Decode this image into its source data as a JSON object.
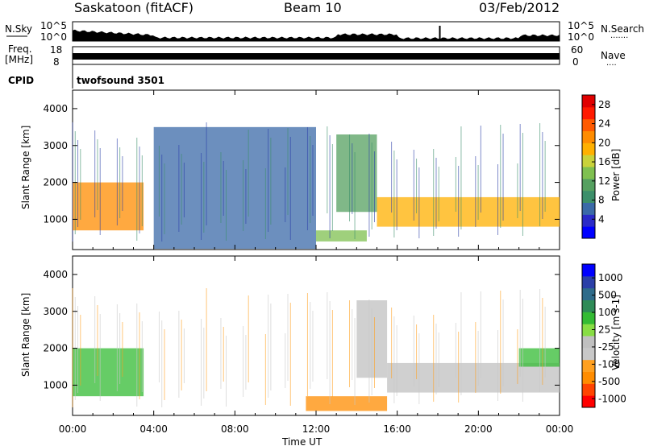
{
  "header": {
    "station": "Saskatoon (fitACF)",
    "beam": "Beam 10",
    "date": "03/Feb/2012"
  },
  "noise_panel": {
    "left_label": "N.Sky",
    "right_label": "N.Search",
    "right_dots": "·······",
    "tick_top": "10^5",
    "tick_bottom": "10^0"
  },
  "freq_panel": {
    "left_label_1": "Freq.",
    "left_label_2": "[MHz]",
    "left_tick_top": "18",
    "left_tick_bottom": "8",
    "right_label": "Nave",
    "right_dots": "····",
    "right_tick_top": "60",
    "right_tick_bottom": "0"
  },
  "cpid_panel": {
    "label": "CPID",
    "program": "twofsound 3501"
  },
  "x_axis": {
    "label": "Time UT",
    "ticks": [
      "00:00",
      "04:00",
      "08:00",
      "12:00",
      "16:00",
      "20:00",
      "00:00"
    ]
  },
  "colors": {
    "power_scale": [
      "#0000ff",
      "#2b2bc8",
      "#3b6aa8",
      "#3c8f6a",
      "#55a060",
      "#7fc050",
      "#c9d23a",
      "#ffb000",
      "#ff8c00",
      "#ff5a00",
      "#ff1a00",
      "#e00000"
    ],
    "velocity_scale": [
      "#ff0000",
      "#ff4400",
      "#ff8c00",
      "#ffa020",
      "#c8c8c8",
      "#c0c0c0",
      "#88dd44",
      "#33bb33",
      "#2e8b57",
      "#2e6b8a",
      "#2b3fa8",
      "#0000ff"
    ]
  },
  "chart_data": [
    {
      "type": "heatmap",
      "title": "",
      "xlabel": "Time UT",
      "ylabel": "Slant Range [km]",
      "xlim": [
        "00:00",
        "24:00"
      ],
      "ylim": [
        180,
        4500
      ],
      "y_ticks": [
        1000,
        2000,
        3000,
        4000
      ],
      "colorbar": {
        "label": "Power [dB]",
        "range": [
          0,
          30
        ],
        "ticks": [
          4,
          8,
          12,
          16,
          20,
          24,
          28
        ]
      },
      "features": [
        {
          "time": [
            "00:00",
            "03:30"
          ],
          "range_km": [
            700,
            2000
          ],
          "value": 20
        },
        {
          "time": [
            "04:00",
            "12:00"
          ],
          "range_km": [
            200,
            3500
          ],
          "value": 6
        },
        {
          "time": [
            "12:00",
            "14:30"
          ],
          "range_km": [
            400,
            700
          ],
          "value": 14
        },
        {
          "time": [
            "13:00",
            "15:00"
          ],
          "range_km": [
            1200,
            3300
          ],
          "value": 10
        },
        {
          "time": [
            "15:00",
            "24:00"
          ],
          "range_km": [
            800,
            1600
          ],
          "value": 18
        }
      ]
    },
    {
      "type": "heatmap",
      "title": "",
      "xlabel": "Time UT",
      "ylabel": "Slant Range [km]",
      "xlim": [
        "00:00",
        "24:00"
      ],
      "ylim": [
        180,
        4500
      ],
      "y_ticks": [
        1000,
        2000,
        3000,
        4000
      ],
      "colorbar": {
        "label": "Velocity [m s-1]",
        "tick_labels": [
          "1000",
          "500",
          "100",
          "25",
          "-25",
          "-100",
          "-500",
          "-1000"
        ]
      },
      "features": [
        {
          "time": [
            "00:00",
            "03:30"
          ],
          "range_km": [
            700,
            2000
          ],
          "value": 100
        },
        {
          "time": [
            "11:30",
            "15:30"
          ],
          "range_km": [
            300,
            700
          ],
          "value": -100
        },
        {
          "time": [
            "14:00",
            "15:30"
          ],
          "range_km": [
            1200,
            3300
          ],
          "value": 25
        },
        {
          "time": [
            "15:30",
            "24:00"
          ],
          "range_km": [
            800,
            1600
          ],
          "value": 0
        },
        {
          "time": [
            "22:00",
            "24:00"
          ],
          "range_km": [
            1500,
            2000
          ],
          "value": 100
        }
      ]
    }
  ]
}
